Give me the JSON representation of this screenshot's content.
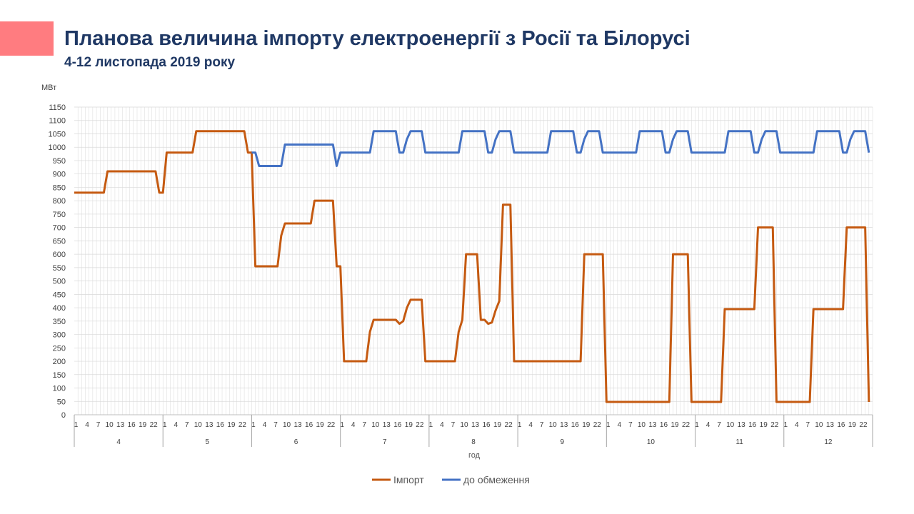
{
  "header": {
    "title": "Планова величина імпорту електроенергії з Росії та Білорусі",
    "subtitle": "4-12 листопада 2019 року",
    "accent_color": "#ff7c80",
    "text_color": "#1f3864"
  },
  "chart_data": {
    "type": "line",
    "title": "",
    "ylabel": "МВт",
    "xlabel": "год",
    "ylim": [
      0,
      1150
    ],
    "yticks": [
      0,
      50,
      100,
      150,
      200,
      250,
      300,
      350,
      400,
      450,
      500,
      550,
      600,
      650,
      700,
      750,
      800,
      850,
      900,
      950,
      1000,
      1050,
      1100,
      1150
    ],
    "days": [
      "4",
      "5",
      "6",
      "7",
      "8",
      "9",
      "10",
      "11",
      "12"
    ],
    "hour_ticks": [
      "1",
      "4",
      "7",
      "10",
      "13",
      "16",
      "19",
      "22"
    ],
    "hours_per_day": 24,
    "grid": true,
    "legend_position": "bottom",
    "series": [
      {
        "name": "Імпорт",
        "color": "#c55a11",
        "points": [
          [
            0,
            830
          ],
          [
            8,
            830
          ],
          [
            9,
            910
          ],
          [
            22,
            910
          ],
          [
            23,
            830
          ],
          [
            24,
            830
          ],
          [
            25,
            980
          ],
          [
            32,
            980
          ],
          [
            33,
            1060
          ],
          [
            46,
            1060
          ],
          [
            47,
            980
          ],
          [
            48,
            980
          ],
          [
            49,
            555
          ],
          [
            55,
            555
          ],
          [
            56,
            670
          ],
          [
            57,
            715
          ],
          [
            64,
            715
          ],
          [
            65,
            800
          ],
          [
            70,
            800
          ],
          [
            71,
            555
          ],
          [
            72,
            555
          ],
          [
            73,
            200
          ],
          [
            79,
            200
          ],
          [
            80,
            310
          ],
          [
            81,
            355
          ],
          [
            87,
            355
          ],
          [
            88,
            340
          ],
          [
            89,
            350
          ],
          [
            90,
            400
          ],
          [
            91,
            430
          ],
          [
            94,
            430
          ],
          [
            95,
            200
          ],
          [
            96,
            200
          ],
          [
            97,
            200
          ],
          [
            103,
            200
          ],
          [
            104,
            310
          ],
          [
            105,
            355
          ],
          [
            106,
            600
          ],
          [
            109,
            600
          ],
          [
            110,
            355
          ],
          [
            111,
            355
          ],
          [
            112,
            340
          ],
          [
            113,
            345
          ],
          [
            114,
            390
          ],
          [
            115,
            425
          ],
          [
            116,
            785
          ],
          [
            118,
            785
          ],
          [
            119,
            200
          ],
          [
            120,
            200
          ],
          [
            121,
            200
          ],
          [
            137,
            200
          ],
          [
            138,
            600
          ],
          [
            143,
            600
          ],
          [
            144,
            48
          ],
          [
            145,
            48
          ],
          [
            161,
            48
          ],
          [
            162,
            600
          ],
          [
            166,
            600
          ],
          [
            167,
            48
          ],
          [
            168,
            48
          ],
          [
            169,
            48
          ],
          [
            175,
            48
          ],
          [
            176,
            395
          ],
          [
            184,
            395
          ],
          [
            185,
            700
          ],
          [
            189,
            700
          ],
          [
            190,
            48
          ],
          [
            192,
            48
          ],
          [
            193,
            48
          ],
          [
            199,
            48
          ],
          [
            200,
            395
          ],
          [
            208,
            395
          ],
          [
            209,
            700
          ],
          [
            214,
            700
          ],
          [
            215,
            48
          ]
        ]
      },
      {
        "name": "до обмеження",
        "color": "#4472c4",
        "points": [
          [
            48,
            980
          ],
          [
            49,
            980
          ],
          [
            50,
            930
          ],
          [
            56,
            930
          ],
          [
            57,
            1010
          ],
          [
            70,
            1010
          ],
          [
            71,
            930
          ],
          [
            72,
            980
          ],
          [
            80,
            980
          ],
          [
            81,
            1060
          ],
          [
            87,
            1060
          ],
          [
            88,
            980
          ],
          [
            89,
            980
          ],
          [
            90,
            1030
          ],
          [
            91,
            1060
          ],
          [
            94,
            1060
          ],
          [
            95,
            980
          ],
          [
            96,
            980
          ],
          [
            104,
            980
          ],
          [
            105,
            1060
          ],
          [
            111,
            1060
          ],
          [
            112,
            980
          ],
          [
            113,
            980
          ],
          [
            114,
            1030
          ],
          [
            115,
            1060
          ],
          [
            118,
            1060
          ],
          [
            119,
            980
          ],
          [
            120,
            980
          ],
          [
            128,
            980
          ],
          [
            129,
            1060
          ],
          [
            135,
            1060
          ],
          [
            136,
            980
          ],
          [
            137,
            980
          ],
          [
            138,
            1030
          ],
          [
            139,
            1060
          ],
          [
            142,
            1060
          ],
          [
            143,
            980
          ],
          [
            144,
            980
          ],
          [
            152,
            980
          ],
          [
            153,
            1060
          ],
          [
            159,
            1060
          ],
          [
            160,
            980
          ],
          [
            161,
            980
          ],
          [
            162,
            1030
          ],
          [
            163,
            1060
          ],
          [
            166,
            1060
          ],
          [
            167,
            980
          ],
          [
            168,
            980
          ],
          [
            176,
            980
          ],
          [
            177,
            1060
          ],
          [
            183,
            1060
          ],
          [
            184,
            980
          ],
          [
            185,
            980
          ],
          [
            186,
            1030
          ],
          [
            187,
            1060
          ],
          [
            190,
            1060
          ],
          [
            191,
            980
          ],
          [
            192,
            980
          ],
          [
            200,
            980
          ],
          [
            201,
            1060
          ],
          [
            207,
            1060
          ],
          [
            208,
            980
          ],
          [
            209,
            980
          ],
          [
            210,
            1030
          ],
          [
            211,
            1060
          ],
          [
            214,
            1060
          ],
          [
            215,
            980
          ]
        ]
      }
    ]
  }
}
